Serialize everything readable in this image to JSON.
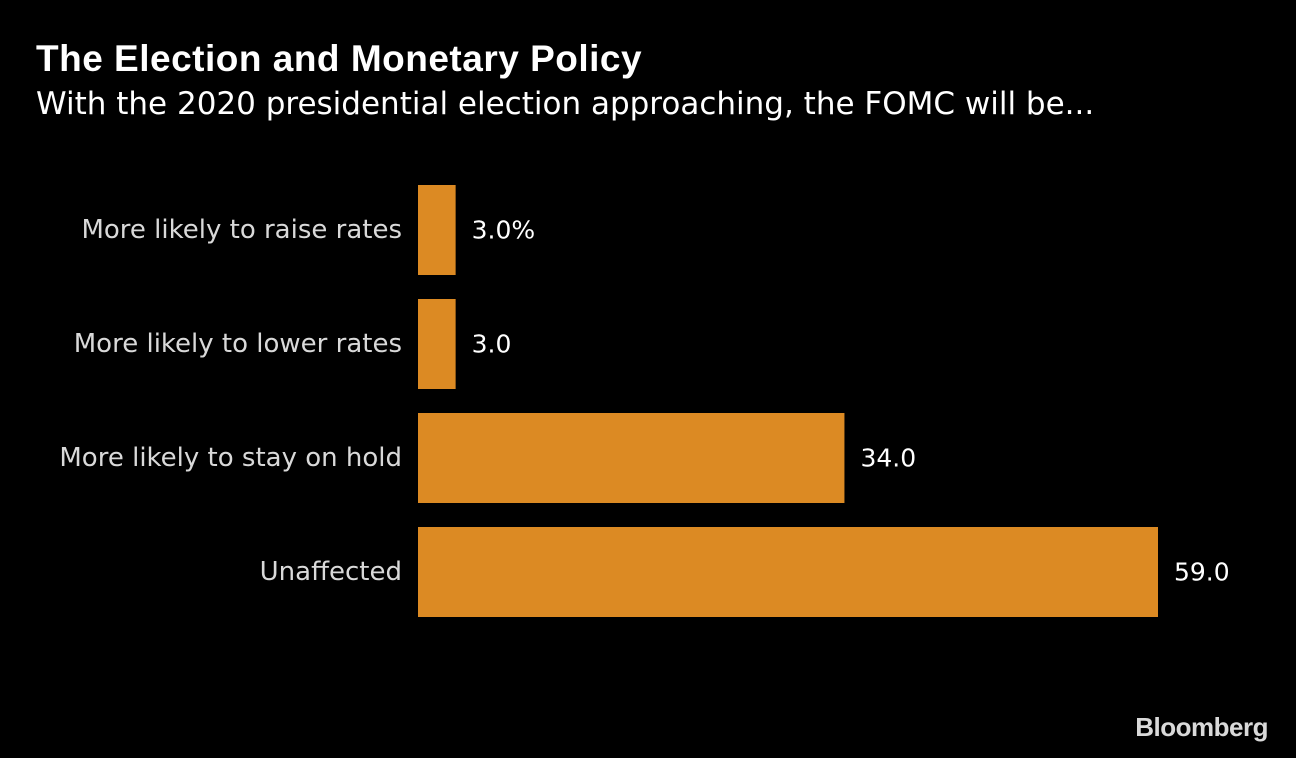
{
  "header": {
    "title": "The Election and Monetary Policy",
    "subtitle": "With the 2020 presidential election approaching, the FOMC will be..."
  },
  "chart_data": {
    "type": "bar",
    "orientation": "horizontal",
    "title": "The Election and Monetary Policy",
    "subtitle": "With the 2020 presidential election approaching, the FOMC will be...",
    "categories": [
      "More likely to raise rates",
      "More likely to lower rates",
      "More likely to stay on hold",
      "Unaffected"
    ],
    "values": [
      3.0,
      3.0,
      34.0,
      59.0
    ],
    "value_labels": [
      "3.0%",
      "3.0",
      "34.0",
      "59.0"
    ],
    "xlim": [
      0,
      59.0
    ],
    "grid": false,
    "legend": "none",
    "colors": {
      "bar": "#DC8A23",
      "background": "#000000",
      "category_label": "#d9d9d9",
      "value_label": "#ffffff"
    }
  },
  "footer": {
    "brand": "Bloomberg"
  }
}
